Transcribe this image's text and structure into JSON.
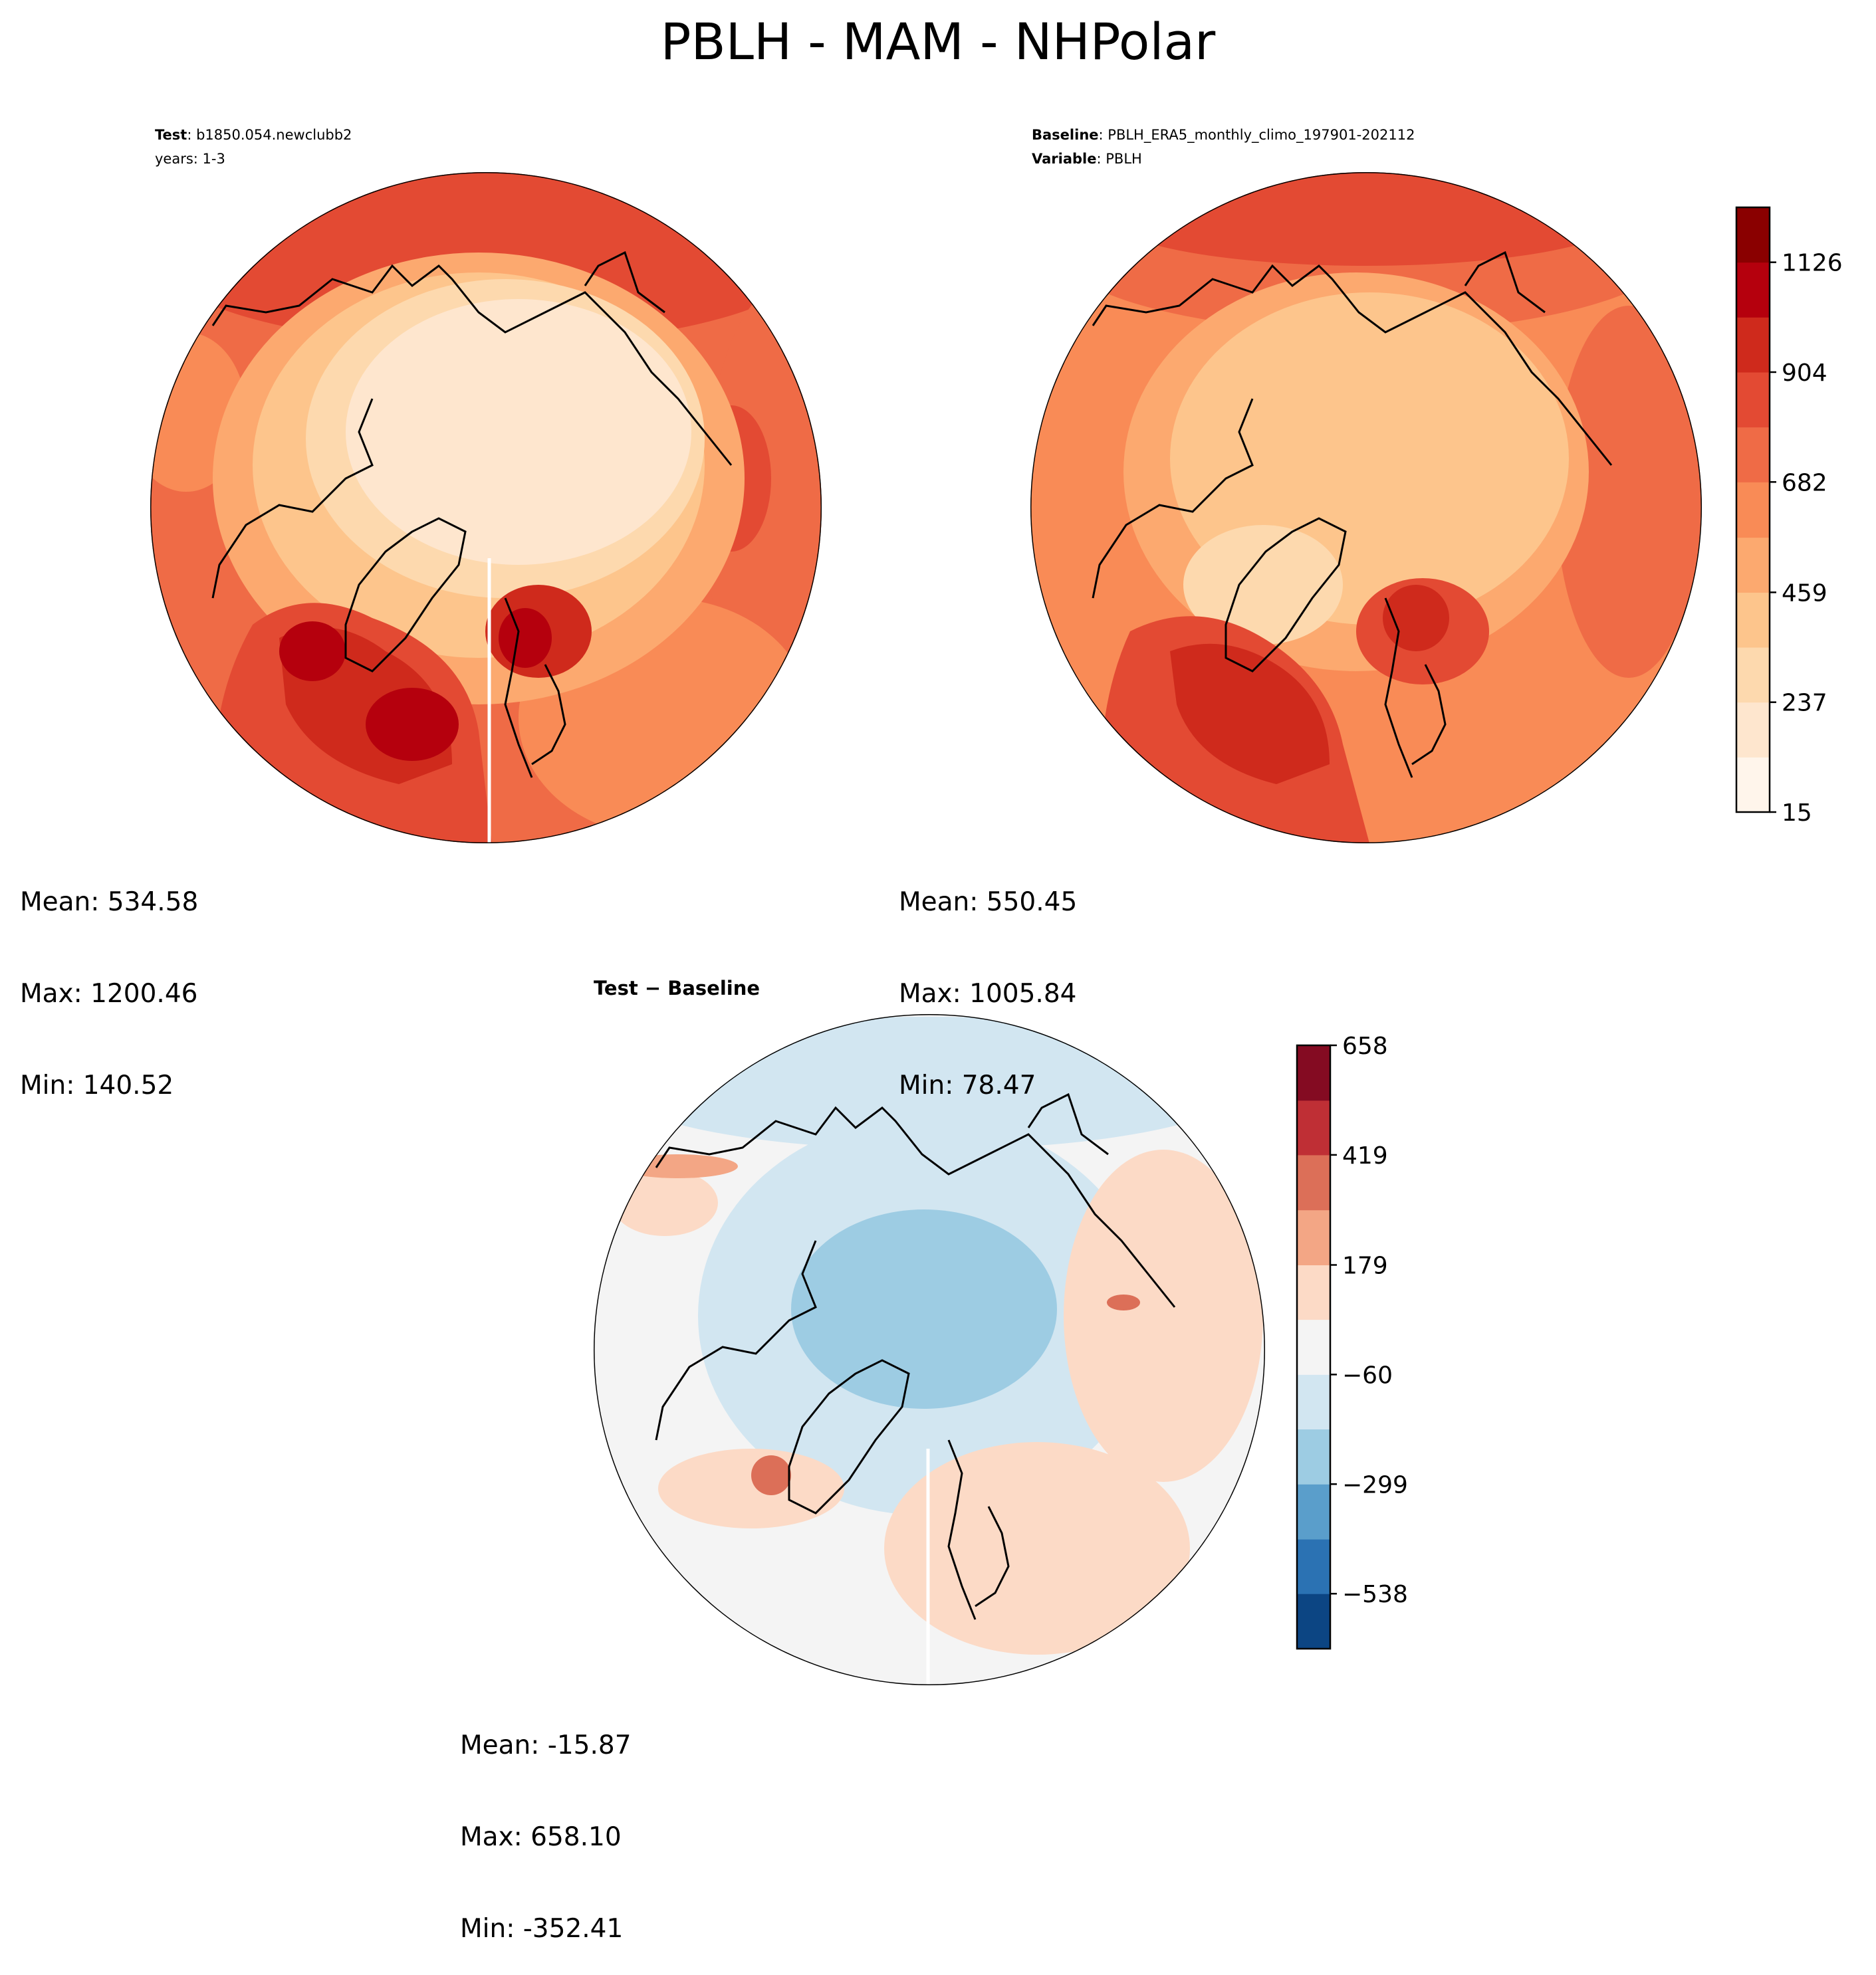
{
  "figure": {
    "title": "PBLH - MAM - NHPolar"
  },
  "panels": {
    "test": {
      "header_label": "Test",
      "header_value": "b1850.054.newclubb2",
      "header_line2": "years: 1-3",
      "mean": "Mean: 534.58",
      "max": "Max: 1200.46",
      "min": "Min: 140.52"
    },
    "baseline": {
      "header_label": "Baseline",
      "header_value": "PBLH_ERA5_monthly_climo_197901-202112",
      "header_label2": "Variable",
      "header_value2": "PBLH",
      "mean": "Mean: 550.45",
      "max": "Max: 1005.84",
      "min": "Min: 78.47"
    },
    "difference": {
      "title_a": "Test",
      "title_sep": " − ",
      "title_b": "Baseline",
      "mean": "Mean: -15.87",
      "max": "Max: 658.10",
      "min": "Min: -352.41"
    }
  },
  "chart_data": [
    {
      "type": "heatmap",
      "panel": "test",
      "projection": "north-polar-stereographic",
      "colormap": "OrRd-like",
      "stats": {
        "mean": 534.58,
        "max": 1200.46,
        "min": 140.52
      }
    },
    {
      "type": "heatmap",
      "panel": "baseline",
      "projection": "north-polar-stereographic",
      "colorbar": {
        "ticks": [
          15,
          237,
          459,
          682,
          904,
          1126
        ],
        "tick_labels": [
          "15",
          "237",
          "459",
          "682",
          "904",
          "1126"
        ],
        "levels": [
          15,
          126,
          237,
          348,
          459,
          570,
          682,
          793,
          904,
          1015,
          1126,
          1237
        ],
        "colors": [
          "#fff5eb",
          "#fee6ce",
          "#fdd9ae",
          "#fdc58c",
          "#fca96f",
          "#f98b56",
          "#ef6b46",
          "#e34a33",
          "#cf2a1c",
          "#b5000d",
          "#8a0000"
        ]
      },
      "stats": {
        "mean": 550.45,
        "max": 1005.84,
        "min": 78.47
      }
    },
    {
      "type": "heatmap",
      "panel": "difference",
      "projection": "north-polar-stereographic",
      "colorbar": {
        "ticks": [
          -538,
          -299,
          -60,
          179,
          419,
          658
        ],
        "tick_labels": [
          "−538",
          "−299",
          "−60",
          "179",
          "419",
          "658"
        ],
        "levels": [
          -658,
          -538,
          -419,
          -299,
          -179,
          -60,
          60,
          179,
          299,
          419,
          538,
          658
        ],
        "colors": [
          "#0c4583",
          "#2b72b3",
          "#5a9ecb",
          "#9dcce3",
          "#d2e6f1",
          "#f4f4f4",
          "#fcdac6",
          "#f3a685",
          "#dc6f58",
          "#bf2f35",
          "#840b22"
        ]
      },
      "stats": {
        "mean": -15.87,
        "max": 658.1,
        "min": -352.41
      }
    }
  ]
}
